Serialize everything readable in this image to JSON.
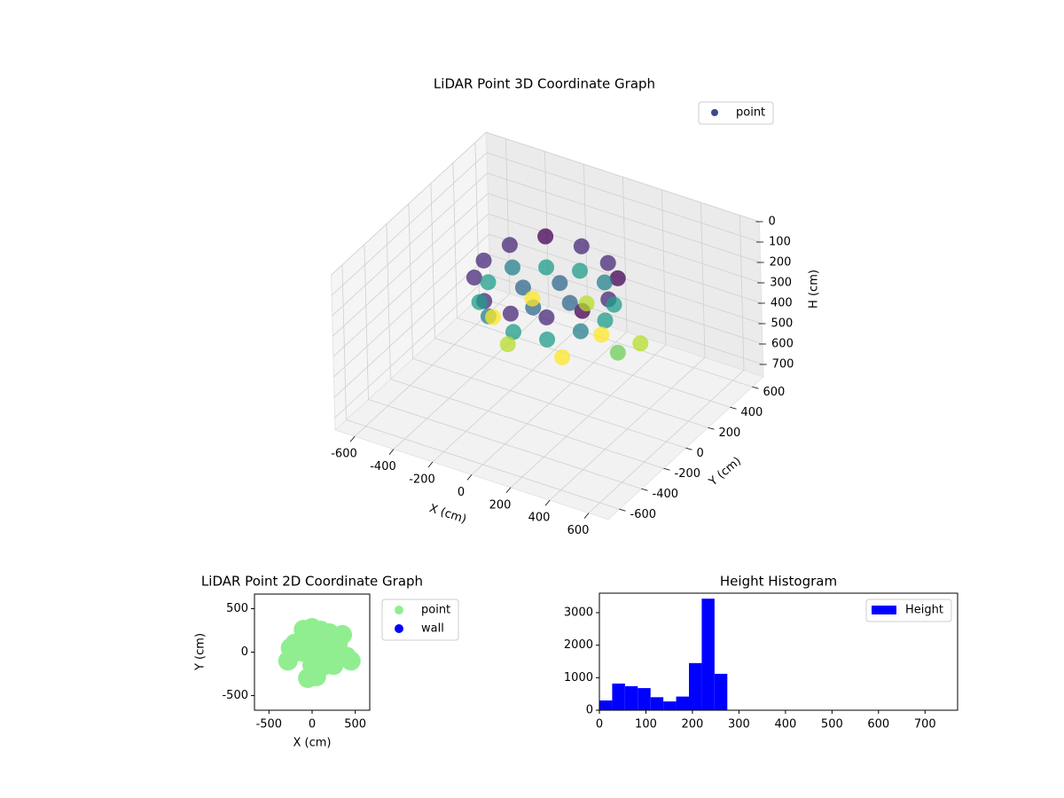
{
  "chart_data": [
    {
      "type": "scatter3d",
      "title": "LiDAR Point 3D Coordinate Graph",
      "xlabel": "X (cm)",
      "ylabel": "Y (cm)",
      "zlabel": "H (cm)",
      "xlim": [
        -700,
        700
      ],
      "ylim": [
        -700,
        700
      ],
      "zlim": [
        0,
        760
      ],
      "z_inverted": true,
      "xticks": [
        -600,
        -400,
        -200,
        0,
        200,
        400,
        600
      ],
      "yticks": [
        -600,
        -400,
        -200,
        0,
        200,
        400,
        600
      ],
      "zticks": [
        0,
        100,
        200,
        300,
        400,
        500,
        600,
        700
      ],
      "colormap": "viridis",
      "grid": true,
      "legend_loc": "upper right",
      "series": [
        {
          "name": "point",
          "color": "#3b4a8c",
          "x": [
            320,
            277,
            160,
            0,
            -160,
            -277,
            -320,
            -277,
            -160,
            0,
            160,
            277,
            300,
            260,
            150,
            0,
            -150,
            -260,
            -300,
            -260,
            -150,
            0,
            150,
            260,
            120,
            0,
            -120,
            0,
            241,
            65,
            -177,
            -241,
            -65,
            177,
            420,
            450
          ],
          "y": [
            0,
            160,
            277,
            320,
            277,
            160,
            0,
            -160,
            -277,
            -320,
            -277,
            -160,
            0,
            150,
            260,
            300,
            260,
            150,
            0,
            -150,
            -260,
            -300,
            -260,
            -150,
            0,
            120,
            0,
            -120,
            65,
            241,
            177,
            -65,
            -241,
            -177,
            -100,
            50
          ],
          "z": [
            150,
            140,
            160,
            150,
            130,
            150,
            160,
            150,
            170,
            160,
            150,
            140,
            260,
            270,
            250,
            260,
            270,
            250,
            260,
            270,
            250,
            260,
            270,
            250,
            230,
            230,
            230,
            230,
            380,
            370,
            390,
            380,
            370,
            390,
            330,
            350
          ]
        }
      ]
    },
    {
      "type": "scatter",
      "title": "LiDAR Point 2D Coordinate Graph",
      "xlabel": "X (cm)",
      "ylabel": "Y (cm)",
      "xlim": [
        -668,
        668
      ],
      "ylim": [
        -668,
        668
      ],
      "xticks": [
        -500,
        0,
        500
      ],
      "yticks": [
        -500,
        0,
        500
      ],
      "legend_loc": "outside right",
      "series": [
        {
          "name": "point",
          "color": "#90ee90",
          "x": [
            0,
            100,
            200,
            300,
            -100,
            -200,
            -250,
            0,
            100,
            200,
            300,
            -100,
            -200,
            0,
            100,
            200,
            -100,
            0,
            150,
            250,
            400,
            450,
            -50,
            50,
            350,
            -280
          ],
          "y": [
            0,
            0,
            0,
            0,
            0,
            0,
            50,
            150,
            150,
            150,
            100,
            150,
            100,
            280,
            250,
            220,
            260,
            -150,
            -150,
            -150,
            -50,
            -100,
            -300,
            -280,
            200,
            -100
          ]
        },
        {
          "name": "wall",
          "color": "#0000ff",
          "x": [],
          "y": []
        }
      ]
    },
    {
      "type": "histogram",
      "title": "Height Histogram",
      "xlim": [
        0,
        770
      ],
      "ylim": [
        0,
        3600
      ],
      "xticks": [
        0,
        100,
        200,
        300,
        400,
        500,
        600,
        700
      ],
      "yticks": [
        0,
        1000,
        2000,
        3000
      ],
      "legend_loc": "upper right",
      "series": [
        {
          "name": "Height",
          "color": "#0000ff",
          "bins": [
            0,
            27.5,
            55,
            82.5,
            110,
            137.5,
            165,
            192.5,
            220,
            247.5,
            275,
            302.5,
            330,
            357.5,
            385,
            412.5,
            440,
            467.5,
            495,
            522.5,
            550,
            577.5,
            605,
            632.5,
            660,
            687.5,
            715,
            742.5
          ],
          "counts": [
            300,
            820,
            740,
            680,
            400,
            270,
            420,
            1450,
            3430,
            1120,
            0,
            0,
            0,
            0,
            0,
            0,
            0,
            0,
            0,
            0,
            0,
            0,
            0,
            0,
            0,
            0,
            0
          ]
        }
      ]
    }
  ]
}
